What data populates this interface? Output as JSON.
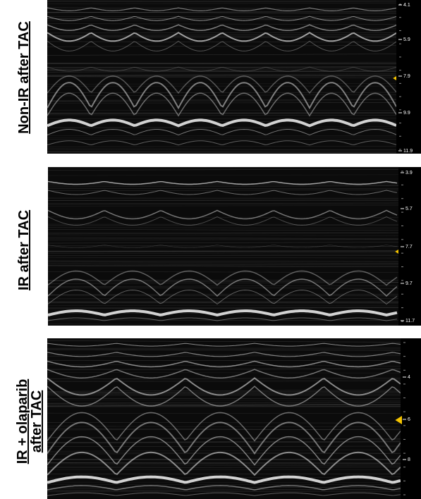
{
  "panels": [
    {
      "label": [
        "Non-IR after TAC"
      ],
      "ticks": [
        4.1,
        5.9,
        7.9,
        9.9,
        11.9
      ]
    },
    {
      "label": [
        "IR after TAC"
      ],
      "ticks": [
        3.9,
        5.7,
        7.7,
        9.7,
        11.7
      ]
    },
    {
      "label": [
        "IR + olaparib",
        "after TAC"
      ],
      "ticks": [
        4,
        6,
        8
      ]
    }
  ]
}
